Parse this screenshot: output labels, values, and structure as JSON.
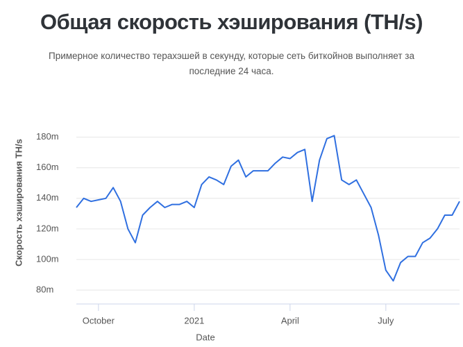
{
  "chart_data": {
    "type": "line",
    "title": "Общая скорость хэширования (TH/s)",
    "subtitle": "Примерное количество терахэшей в секунду, которые сеть биткойнов выполняет за последние 24 часа.",
    "x_label": "Date",
    "y_label": "Скорость хэширования TH/s",
    "categories": [
      null,
      null,
      null,
      "October",
      null,
      null,
      null,
      null,
      null,
      null,
      null,
      null,
      null,
      null,
      null,
      null,
      "2021",
      null,
      null,
      null,
      null,
      null,
      null,
      null,
      null,
      null,
      null,
      null,
      null,
      "April",
      null,
      null,
      null,
      null,
      null,
      null,
      null,
      null,
      null,
      null,
      null,
      null,
      "July",
      null,
      null,
      null,
      null,
      null,
      null,
      null,
      null,
      null,
      null
    ],
    "series": [
      {
        "name": "Скорость хэширования",
        "color": "#2f6fe0",
        "values": [
          134,
          140,
          138,
          139,
          140,
          147,
          138,
          120,
          111,
          129,
          134,
          138,
          134,
          136,
          136,
          138,
          134,
          149,
          154,
          152,
          149,
          161,
          165,
          154,
          158,
          158,
          158,
          163,
          167,
          166,
          170,
          172,
          138,
          165,
          179,
          181,
          152,
          149,
          152,
          143,
          134,
          116,
          93,
          86,
          98,
          102,
          102,
          111,
          114,
          120,
          129,
          129,
          138
        ]
      }
    ],
    "ylim": [
      70,
      188
    ],
    "yticks": [
      {
        "value": 80,
        "label": "80m"
      },
      {
        "value": 100,
        "label": "100m"
      },
      {
        "value": 120,
        "label": "120m"
      },
      {
        "value": 140,
        "label": "140m"
      },
      {
        "value": 160,
        "label": "160m"
      },
      {
        "value": 180,
        "label": "180m"
      }
    ],
    "grid": true
  }
}
